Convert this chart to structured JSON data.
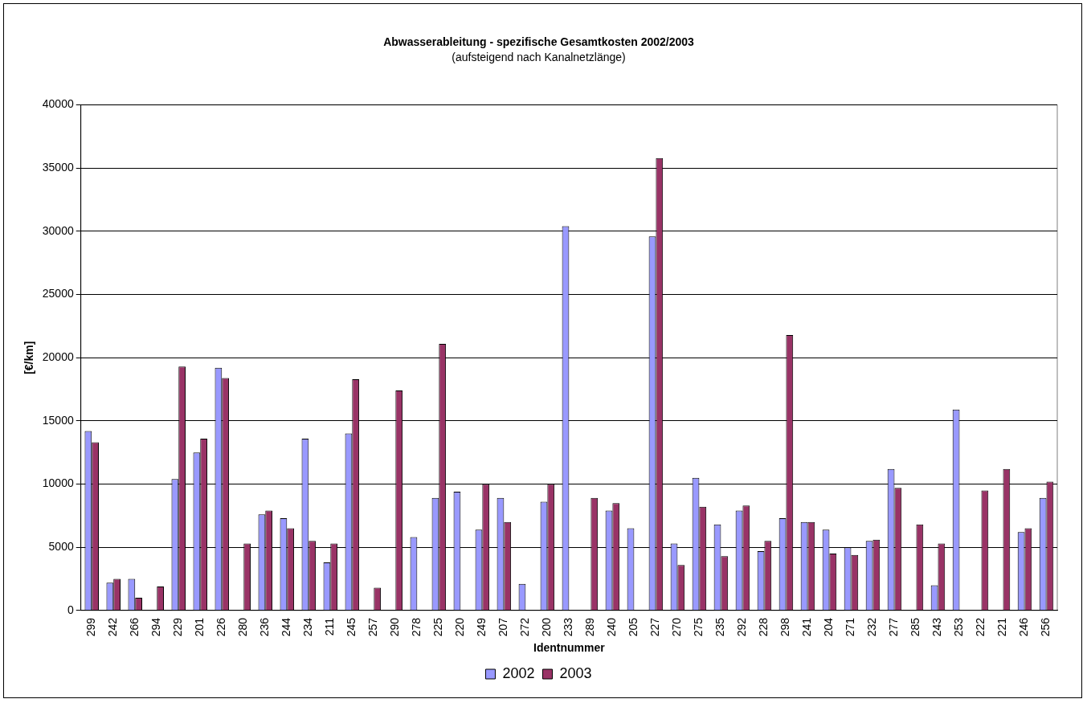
{
  "chart_data": {
    "type": "bar",
    "title": "Abwasserableitung - spezifische Gesamtkosten 2002/2003",
    "subtitle": "(aufsteigend nach Kanalnetzlänge)",
    "xlabel": "Identnummer",
    "ylabel": "[€/km]",
    "categories": [
      "299",
      "242",
      "266",
      "294",
      "229",
      "201",
      "226",
      "280",
      "236",
      "244",
      "234",
      "211",
      "245",
      "257",
      "290",
      "278",
      "225",
      "220",
      "249",
      "207",
      "272",
      "200",
      "233",
      "289",
      "240",
      "205",
      "227",
      "270",
      "275",
      "235",
      "292",
      "228",
      "298",
      "241",
      "204",
      "271",
      "232",
      "277",
      "285",
      "243",
      "253",
      "222",
      "221",
      "246",
      "256"
    ],
    "series": [
      {
        "name": "2002",
        "color": "#9999ff",
        "values": [
          14200,
          2200,
          2500,
          null,
          10400,
          12500,
          19200,
          null,
          7600,
          7300,
          13600,
          3800,
          14000,
          null,
          null,
          5800,
          8900,
          9400,
          6400,
          8900,
          2100,
          8600,
          30400,
          null,
          7900,
          6500,
          29600,
          5300,
          10500,
          6800,
          7900,
          4700,
          7300,
          7000,
          6400,
          5000,
          5500,
          11200,
          null,
          2000,
          15900,
          null,
          null,
          6200,
          8900
        ]
      },
      {
        "name": "2003",
        "color": "#993366",
        "values": [
          13300,
          2500,
          1000,
          1900,
          19300,
          13600,
          18400,
          5300,
          7900,
          6500,
          5500,
          5300,
          18300,
          1800,
          17400,
          null,
          21100,
          null,
          10000,
          7000,
          null,
          10000,
          null,
          8900,
          8500,
          null,
          35800,
          3600,
          8200,
          4300,
          8300,
          5500,
          21800,
          7000,
          4500,
          4400,
          5600,
          9700,
          6800,
          5300,
          null,
          9500,
          11200,
          6500,
          10200
        ]
      }
    ],
    "ylim": [
      0,
      40000
    ],
    "yticks": [
      0,
      5000,
      10000,
      15000,
      20000,
      25000,
      30000,
      35000,
      40000
    ],
    "grid": "y",
    "legend": "bottom"
  }
}
